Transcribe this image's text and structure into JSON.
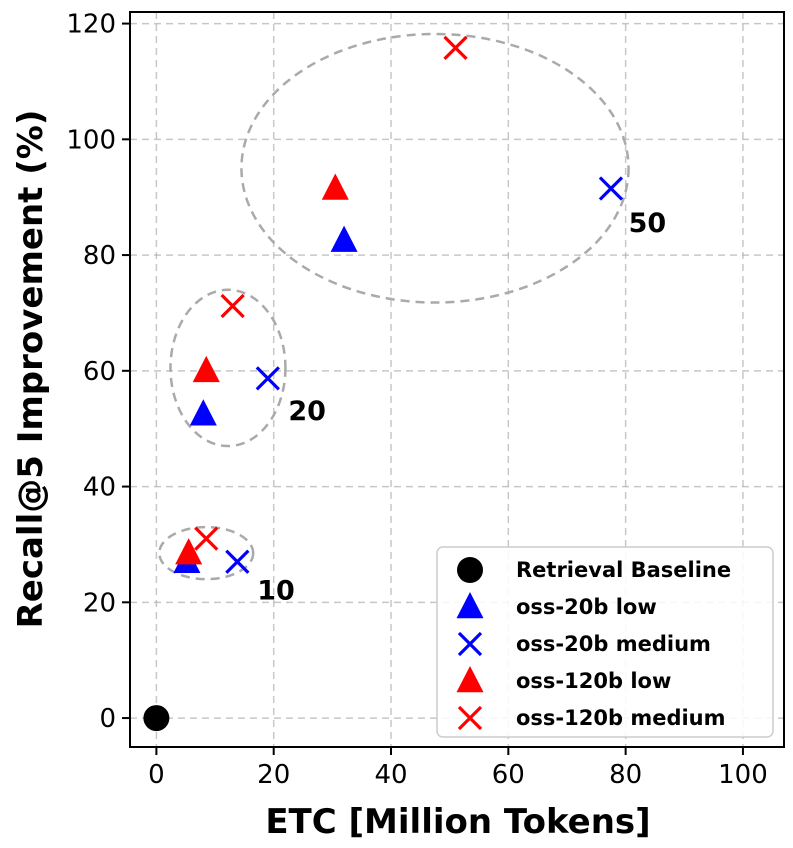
{
  "chart_data": {
    "type": "scatter",
    "xlabel": "ETC [Million Tokens]",
    "ylabel": "Recall@5 Improvement (%)",
    "xlim": [
      -4.5,
      107
    ],
    "ylim": [
      -5,
      122
    ],
    "xticks": [
      0,
      20,
      40,
      60,
      80,
      100
    ],
    "yticks": [
      0,
      20,
      40,
      60,
      80,
      100,
      120
    ],
    "grid": true,
    "legend_position": "lower-right",
    "series": [
      {
        "name": "Retrieval Baseline",
        "marker": "circle",
        "color": "#000000",
        "points": [
          {
            "x": 0,
            "y": 0
          }
        ]
      },
      {
        "name": "oss-20b low",
        "marker": "triangle",
        "color": "#0000ff",
        "points": [
          {
            "x": 5.2,
            "y": 27.0
          },
          {
            "x": 8.0,
            "y": 52.5
          },
          {
            "x": 32.0,
            "y": 82.5
          }
        ]
      },
      {
        "name": "oss-20b medium",
        "marker": "x",
        "color": "#0000ff",
        "points": [
          {
            "x": 13.8,
            "y": 27.0
          },
          {
            "x": 19.0,
            "y": 58.7
          },
          {
            "x": 77.5,
            "y": 91.5
          }
        ]
      },
      {
        "name": "oss-120b low",
        "marker": "triangle",
        "color": "#ff0000",
        "points": [
          {
            "x": 5.5,
            "y": 28.5
          },
          {
            "x": 8.5,
            "y": 60.0
          },
          {
            "x": 30.5,
            "y": 91.5
          }
        ]
      },
      {
        "name": "oss-120b medium",
        "marker": "x",
        "color": "#ff0000",
        "points": [
          {
            "x": 8.5,
            "y": 31.0
          },
          {
            "x": 13.0,
            "y": 71.2
          },
          {
            "x": 51.0,
            "y": 115.8
          }
        ]
      }
    ],
    "groups": [
      {
        "label": "10",
        "cx": 8.5,
        "cy": 28.5,
        "rx": 8,
        "ry": 4.5,
        "label_x": 17.2,
        "label_y": 20.5
      },
      {
        "label": "20",
        "cx": 12.2,
        "cy": 60.5,
        "rx": 9.8,
        "ry": 13.5,
        "label_x": 22.5,
        "label_y": 51.5
      },
      {
        "label": "50",
        "cx": 47.5,
        "cy": 95.0,
        "rx": 33,
        "ry": 23.2,
        "label_x": 80.5,
        "label_y": 84.0
      }
    ],
    "annotations": [
      "10",
      "20",
      "50"
    ]
  }
}
